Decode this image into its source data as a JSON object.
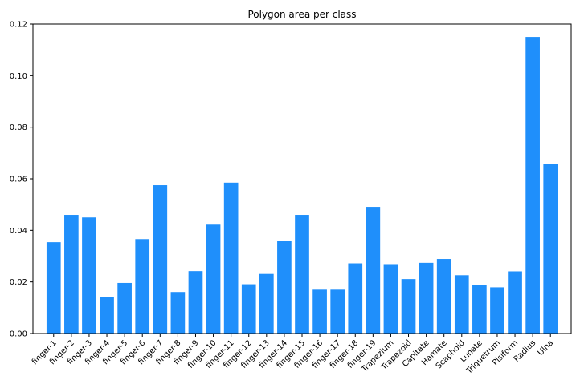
{
  "chart_data": {
    "type": "bar",
    "title": "Polygon area per class",
    "xlabel": "",
    "ylabel": "",
    "ylim": [
      0,
      0.12
    ],
    "yticks": [
      0.0,
      0.02,
      0.04,
      0.06,
      0.08,
      0.1,
      0.12
    ],
    "ytick_labels": [
      "0.00",
      "0.02",
      "0.04",
      "0.06",
      "0.08",
      "0.10",
      "0.12"
    ],
    "grid": false,
    "bar_color": "#1f8ffb",
    "categories": [
      "finger-1",
      "finger-2",
      "finger-3",
      "finger-4",
      "finger-5",
      "finger-6",
      "finger-7",
      "finger-8",
      "finger-9",
      "finger-10",
      "finger-11",
      "finger-12",
      "finger-13",
      "finger-14",
      "finger-15",
      "finger-16",
      "finger-17",
      "finger-18",
      "finger-19",
      "Trapezium",
      "Trapezoid",
      "Capitate",
      "Hamate",
      "Scaphoid",
      "Lunate",
      "Triquetrum",
      "Pisiform",
      "Radius",
      "Ulna"
    ],
    "values": [
      0.0354,
      0.046,
      0.045,
      0.0143,
      0.0196,
      0.0366,
      0.0575,
      0.0161,
      0.0242,
      0.0422,
      0.0585,
      0.0191,
      0.0231,
      0.0359,
      0.046,
      0.017,
      0.017,
      0.0272,
      0.0491,
      0.0269,
      0.0211,
      0.0274,
      0.0289,
      0.0226,
      0.0187,
      0.0179,
      0.0241,
      0.115,
      0.0656
    ]
  }
}
